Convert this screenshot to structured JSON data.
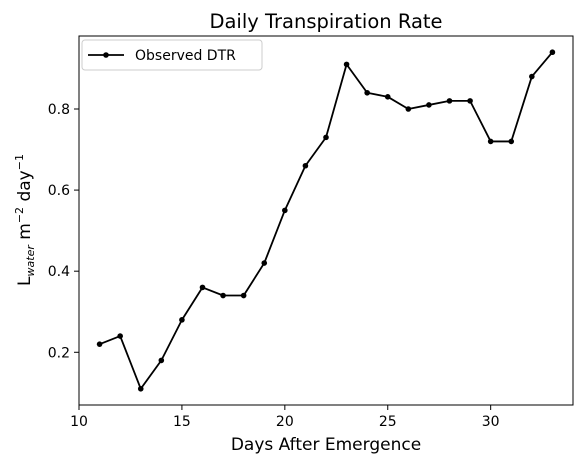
{
  "chart_data": {
    "type": "line",
    "title": "Daily Transpiration Rate",
    "xlabel": "Days After Emergence",
    "ylabel": {
      "base": "L",
      "sub": "water",
      "mid": " m",
      "sup1": "−2",
      "tail": " day",
      "sup2": "−1"
    },
    "xlim": [
      10,
      34
    ],
    "ylim": [
      0.07,
      0.98
    ],
    "xticks": [
      10,
      15,
      20,
      25,
      30
    ],
    "yticks": [
      0.2,
      0.4,
      0.6,
      0.8
    ],
    "xtick_labels": [
      "10",
      "15",
      "20",
      "25",
      "30"
    ],
    "ytick_labels": [
      "0.2",
      "0.4",
      "0.6",
      "0.8"
    ],
    "grid": false,
    "legend_position": "top-left",
    "series": [
      {
        "name": "Observed DTR",
        "color": "#000000",
        "marker": "circle",
        "x": [
          11,
          12,
          13,
          14,
          15,
          16,
          17,
          18,
          19,
          20,
          21,
          22,
          23,
          24,
          25,
          26,
          27,
          28,
          29,
          30,
          31,
          32,
          33
        ],
        "y": [
          0.22,
          0.24,
          0.11,
          0.18,
          0.28,
          0.36,
          0.34,
          0.34,
          0.42,
          0.55,
          0.66,
          0.73,
          0.91,
          0.84,
          0.83,
          0.8,
          0.81,
          0.82,
          0.82,
          0.72,
          0.72,
          0.88,
          0.94
        ]
      }
    ]
  }
}
